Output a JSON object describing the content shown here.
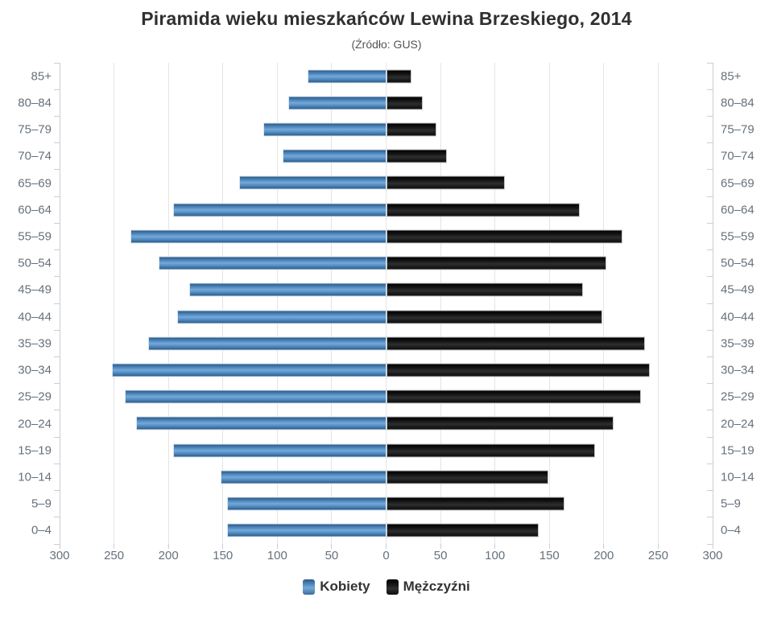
{
  "chart_data": {
    "type": "bar",
    "variant": "population-pyramid",
    "title": "Piramida wieku mieszkańców Lewina Brzeskiego, 2014",
    "subtitle": "(Źródło: GUS)",
    "categories": [
      "85+",
      "80–84",
      "75–79",
      "70–74",
      "65–69",
      "60–64",
      "55–59",
      "50–54",
      "45–49",
      "40–44",
      "35–39",
      "30–34",
      "25–29",
      "20–24",
      "15–19",
      "10–14",
      "5–9",
      "0–4"
    ],
    "series": [
      {
        "name": "Kobiety",
        "side": "left",
        "color": "#4f86ba",
        "values": [
          72,
          90,
          113,
          95,
          135,
          196,
          235,
          209,
          181,
          192,
          219,
          252,
          240,
          230,
          196,
          152,
          146,
          146
        ]
      },
      {
        "name": "Mężczyźni",
        "side": "right",
        "color": "#161616",
        "values": [
          23,
          34,
          46,
          56,
          109,
          178,
          217,
          202,
          181,
          199,
          238,
          242,
          234,
          209,
          192,
          149,
          164,
          140
        ]
      }
    ],
    "x_axis": {
      "max_each_side": 300,
      "tick_interval": 50,
      "tick_labels": [
        "300",
        "250",
        "200",
        "150",
        "100",
        "50",
        "0",
        "50",
        "100",
        "150",
        "200",
        "250",
        "300"
      ]
    },
    "grid": true,
    "legend_position": "bottom"
  },
  "colors": {
    "female_bar": "#4f86ba",
    "male_bar": "#161616",
    "gridline": "#e4e4e4",
    "axis_line": "#c9ced3",
    "axis_label": "#66717b",
    "title_text": "#303030",
    "subtitle_text": "#555555",
    "legend_text": "#333333"
  }
}
